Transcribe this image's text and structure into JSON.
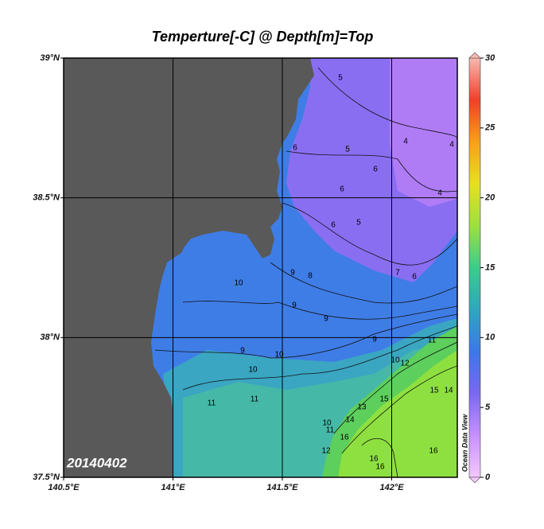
{
  "map": {
    "type": "contour-map",
    "title": "Temperture[-C] @ Depth[m]=Top",
    "xlim": [
      140.5,
      142.3
    ],
    "ylim": [
      37.5,
      39
    ],
    "xticks": [
      {
        "value": 140.5,
        "label": "140.5°E"
      },
      {
        "value": 141,
        "label": "141°E"
      },
      {
        "value": 141.5,
        "label": "141.5°E"
      },
      {
        "value": 142,
        "label": "142°E"
      }
    ],
    "yticks": [
      {
        "value": 37.5,
        "label": "37.5°N"
      },
      {
        "value": 38,
        "label": "38°N"
      },
      {
        "value": 38.5,
        "label": "38.5°N"
      },
      {
        "value": 39,
        "label": "39°N"
      }
    ],
    "grid": true,
    "colorbar": {
      "lim": [
        0,
        30
      ],
      "ticks": [
        0,
        5,
        10,
        15,
        20,
        25,
        30
      ],
      "colors": [
        "#f4c8ff",
        "#c890ff",
        "#7a68f0",
        "#3c78e8",
        "#2fa6c0",
        "#3ccc8a",
        "#9ce040",
        "#e8e020",
        "#f8a018",
        "#f04028",
        "#f8b8b0"
      ]
    },
    "date_label": "20140402",
    "watermark": "Ocean Data View",
    "contour_labels": [
      5,
      5,
      4,
      6,
      6,
      5,
      6,
      6,
      4,
      4,
      6,
      7,
      9,
      8,
      10,
      9,
      9,
      9,
      9,
      10,
      10,
      10,
      11,
      12,
      11,
      11,
      15,
      15,
      14,
      10,
      11,
      16,
      12,
      16,
      16,
      16,
      13,
      14
    ]
  }
}
